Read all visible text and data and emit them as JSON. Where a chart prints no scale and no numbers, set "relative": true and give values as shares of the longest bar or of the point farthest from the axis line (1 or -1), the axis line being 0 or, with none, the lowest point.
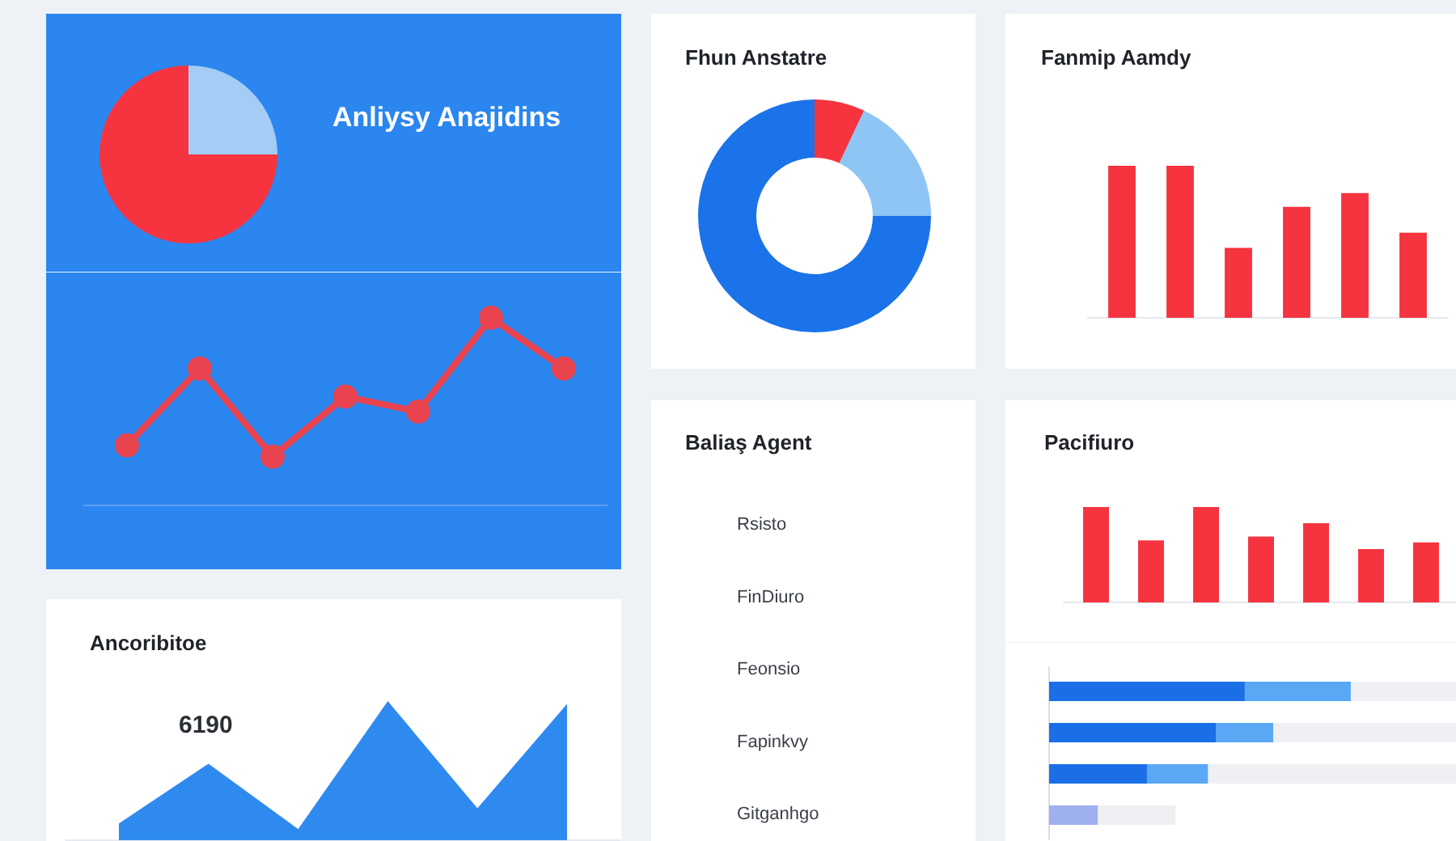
{
  "chart_data": [
    {
      "type": "pie",
      "title": "Anliysy Anajidins",
      "categories": [
        null,
        null
      ],
      "values": [
        25,
        75
      ],
      "colors": [
        "#a3cdf5",
        "#f5343f"
      ]
    },
    {
      "type": "line",
      "relative": true,
      "marker": "circle",
      "categories": [
        null,
        null,
        null,
        null,
        null,
        null,
        null
      ],
      "series": [
        {
          "color": "#e8434f",
          "values": [
            0.32,
            0.73,
            0.26,
            0.58,
            0.5,
            1.0,
            0.73
          ]
        }
      ]
    },
    {
      "type": "donut",
      "title": "Fhun Anstatre",
      "categories": [
        null,
        null,
        null
      ],
      "values": [
        7,
        18,
        75
      ],
      "colors": [
        "#f5343f",
        "#8ec5f5",
        "#1a73e8"
      ]
    },
    {
      "type": "bar",
      "title": "Fanmip Aamdy",
      "relative": true,
      "categories": [
        null,
        null,
        null,
        null,
        null,
        null
      ],
      "values": [
        1.0,
        1.0,
        0.46,
        0.73,
        0.82,
        0.56
      ],
      "color": "#f5343f"
    },
    {
      "type": "area",
      "title": "Ancoribitoe",
      "relative": true,
      "categories": [
        null,
        null,
        null,
        null,
        null,
        null
      ],
      "values": [
        0.12,
        0.55,
        0.08,
        1.0,
        0.23,
        0.98
      ],
      "color": "#2f8af0",
      "annotations": [
        "6190"
      ]
    },
    {
      "type": "other",
      "title": "Baliaş Agent",
      "annotations": [
        "Rsisto",
        "FinDiuro",
        "Feonsio",
        "Fapinkvy",
        "Gitganhgo"
      ]
    },
    {
      "type": "bar",
      "title": "Pacifiuro",
      "relative": true,
      "categories": [
        null,
        null,
        null,
        null,
        null,
        null,
        null
      ],
      "values": [
        1.0,
        0.65,
        1.0,
        0.69,
        0.83,
        0.56,
        0.63
      ],
      "color": "#f5343f"
    },
    {
      "type": "bar",
      "orientation": "horizontal",
      "stacked": true,
      "relative": true,
      "categories": [
        null,
        null,
        null,
        null
      ],
      "series": [
        {
          "colors": [
            "#1a6fe6",
            "#1a6fe6",
            "#1a6fe6",
            "#9fb0f0"
          ],
          "values": [
            0.48,
            0.41,
            0.24,
            0.12
          ]
        },
        {
          "color": "#5aa8f5",
          "values": [
            0.26,
            0.14,
            0.15,
            null
          ]
        },
        {
          "color": "#eef0f3",
          "values": [
            0.26,
            0.45,
            0.61,
            0.19
          ]
        }
      ]
    }
  ]
}
